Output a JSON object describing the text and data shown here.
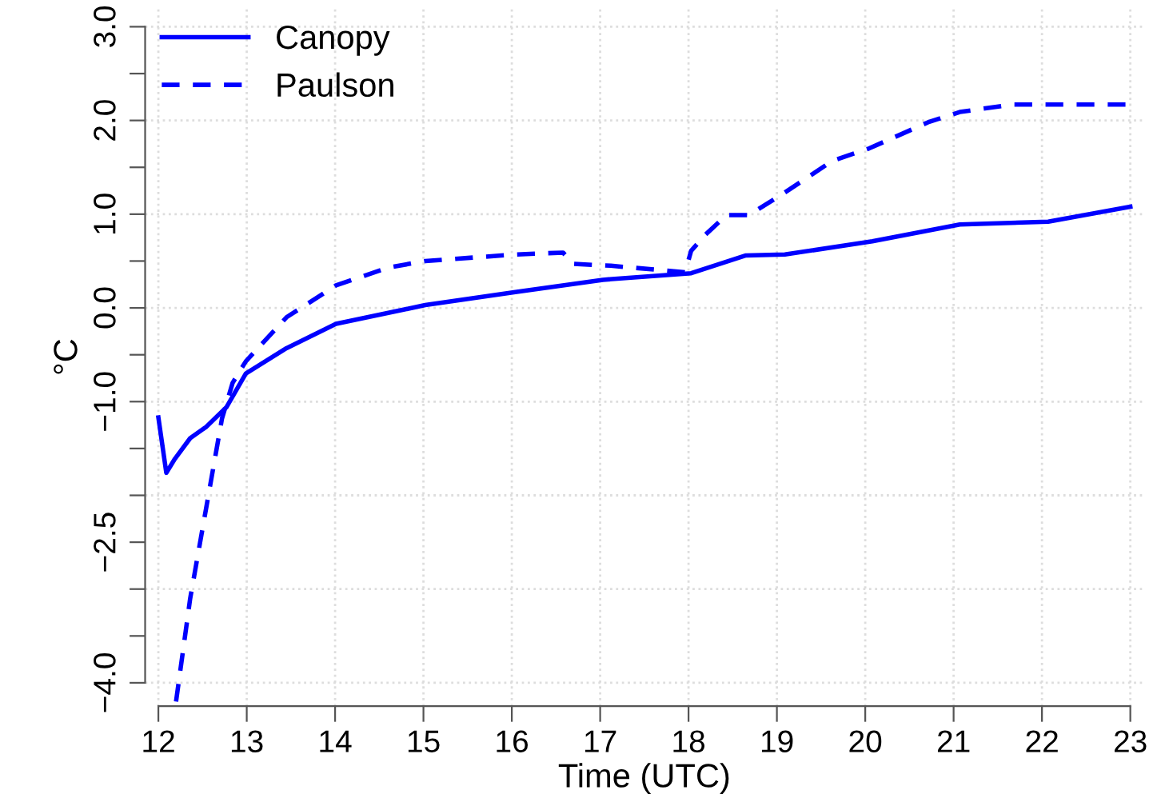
{
  "chart_data": {
    "type": "line",
    "xlabel": "Time (UTC)",
    "ylabel": "°C",
    "xlim": [
      11.85,
      23.15
    ],
    "ylim": [
      -4.25,
      3.2
    ],
    "xticks": [
      12,
      13,
      14,
      15,
      16,
      17,
      18,
      19,
      20,
      21,
      22,
      23
    ],
    "yticks": [
      {
        "value": -4,
        "label": "−4.0"
      },
      {
        "value": -3.5,
        "label": null
      },
      {
        "value": -3,
        "label": null
      },
      {
        "value": -2.5,
        "label": "−2.5"
      },
      {
        "value": -2,
        "label": null
      },
      {
        "value": -1.5,
        "label": null
      },
      {
        "value": -1,
        "label": "−1.0"
      },
      {
        "value": -0.5,
        "label": null
      },
      {
        "value": 0,
        "label": "0.0"
      },
      {
        "value": 0.5,
        "label": null
      },
      {
        "value": 1,
        "label": "1.0"
      },
      {
        "value": 1.5,
        "label": null
      },
      {
        "value": 2,
        "label": "2.0"
      },
      {
        "value": 2.5,
        "label": null
      },
      {
        "value": 3,
        "label": "3.0"
      }
    ],
    "grid": true,
    "legend": "top left",
    "series": [
      {
        "name": "Canopy",
        "color": "#0000ff",
        "line_style": "solid",
        "x": [
          12,
          12.09,
          12.18,
          12.36,
          12.54,
          12.77,
          12.99,
          13.45,
          14.01,
          15.02,
          16.04,
          17.03,
          18.03,
          18.65,
          19.09,
          20.08,
          21.07,
          22.07,
          23.0
        ],
        "values": [
          -1.17,
          -1.76,
          -1.62,
          -1.39,
          -1.27,
          -1.06,
          -0.7,
          -0.43,
          -0.17,
          0.03,
          0.17,
          0.3,
          0.37,
          0.56,
          0.57,
          0.71,
          0.89,
          0.92,
          1.08
        ]
      },
      {
        "name": "Paulson",
        "color": "#0000ff",
        "line_style": "dashed",
        "x": [
          12.2,
          12.36,
          12.54,
          12.72,
          12.84,
          12.99,
          13.45,
          14.01,
          14.6,
          15.02,
          16.04,
          16.58,
          16.69,
          17.12,
          17.96,
          18.03,
          18.19,
          18.43,
          18.68,
          19.04,
          19.63,
          20.04,
          20.71,
          21.07,
          21.66,
          22.09,
          23.0
        ],
        "values": [
          -4.2,
          -3.1,
          -2.14,
          -1.18,
          -0.8,
          -0.57,
          -0.1,
          0.24,
          0.43,
          0.5,
          0.57,
          0.59,
          0.47,
          0.45,
          0.38,
          0.61,
          0.78,
          0.99,
          0.99,
          1.2,
          1.57,
          1.7,
          1.98,
          2.09,
          2.17,
          2.17,
          2.17
        ]
      }
    ]
  }
}
